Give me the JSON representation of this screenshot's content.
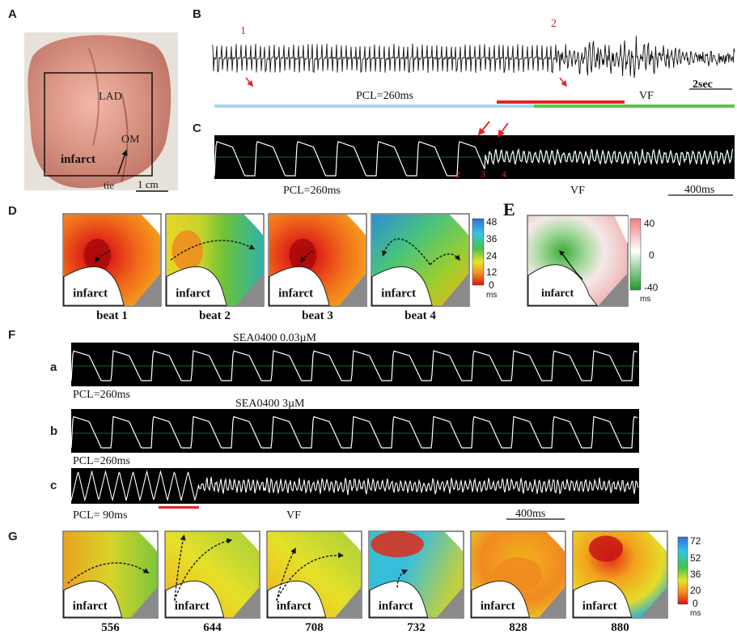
{
  "panels": {
    "A": {
      "label": "A",
      "texts": {
        "lad": "LAD",
        "om": "OM",
        "infarct": "infarct",
        "tie": "tie",
        "scale": "1 cm"
      }
    },
    "B": {
      "label": "B",
      "markers": [
        "1",
        "2"
      ],
      "pcl": "PCL=260ms",
      "vf": "VF",
      "scale": "2sec"
    },
    "C": {
      "label": "C",
      "markers": [
        "2",
        "3",
        "4"
      ],
      "pcl": "PCL=260ms",
      "vf": "VF",
      "scale": "400ms"
    },
    "D": {
      "label": "D",
      "maps": [
        {
          "caption": "beat 1",
          "infarct": "infarct"
        },
        {
          "caption": "beat 2",
          "infarct": "infarct"
        },
        {
          "caption": "beat 3",
          "infarct": "infarct"
        },
        {
          "caption": "beat 4",
          "infarct": "infarct"
        }
      ],
      "colorbar": {
        "ticks": [
          "48",
          "36",
          "24",
          "12",
          "0"
        ],
        "unit": "ms"
      }
    },
    "E": {
      "label": "E",
      "infarct": "infarct",
      "colorbar": {
        "ticks": [
          "40",
          "0",
          "-40"
        ],
        "unit": "ms"
      }
    },
    "F": {
      "label": "F",
      "rows": [
        {
          "label": "a",
          "title": "SEA0400 0.03µM",
          "pcl": "PCL=260ms"
        },
        {
          "label": "b",
          "title": "SEA0400 3µM",
          "pcl": "PCL=260ms"
        },
        {
          "label": "c",
          "title": "",
          "pcl": "PCL= 90ms"
        }
      ],
      "vf": "VF",
      "scale": "400ms"
    },
    "G": {
      "label": "G",
      "maps": [
        {
          "caption": "556",
          "infarct": "infarct"
        },
        {
          "caption": "644",
          "infarct": "infarct"
        },
        {
          "caption": "708",
          "infarct": "infarct"
        },
        {
          "caption": "732",
          "infarct": "infarct"
        },
        {
          "caption": "828",
          "infarct": "infarct"
        },
        {
          "caption": "880",
          "infarct": "infarct"
        }
      ],
      "colorbar": {
        "ticks": [
          "72",
          "52",
          "36",
          "20",
          "0"
        ],
        "unit": "ms"
      }
    }
  },
  "colors": {
    "trace_bg": "#000000",
    "trace_line": "#ffffff",
    "grid": "#0a6b2a",
    "pacing_bar": "#a5d6e8",
    "transition_bar": "#e52222",
    "vf_bar": "#5cc44a",
    "marker": "#e52222"
  }
}
